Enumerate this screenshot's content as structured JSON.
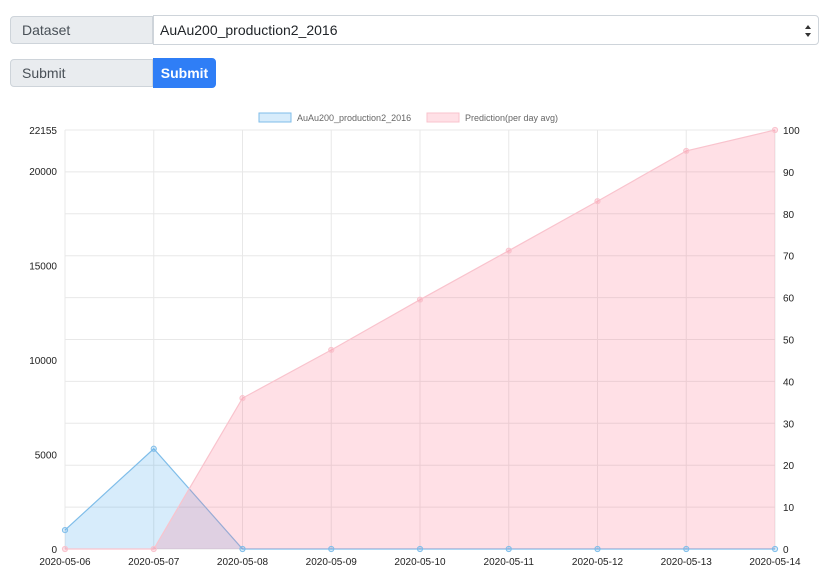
{
  "form": {
    "dataset_label": "Dataset",
    "dataset_value": "AuAu200_production2_2016",
    "submit_label": "Submit",
    "submit_button": "Submit"
  },
  "colors": {
    "primary": "#2f7ef6",
    "series1_line": "#7fbde9",
    "series1_fill": "rgba(54,162,235,0.2)",
    "series2_line": "#f9c3cd",
    "series2_fill": "rgba(255,99,132,0.2)"
  },
  "chart_data": {
    "type": "area",
    "x": [
      "2020-05-06",
      "2020-05-07",
      "2020-05-08",
      "2020-05-09",
      "2020-05-10",
      "2020-05-11",
      "2020-05-12",
      "2020-05-13",
      "2020-05-14"
    ],
    "series": [
      {
        "name": "AuAu200_production2_2016",
        "axis": "left",
        "values": [
          1000,
          5300,
          0,
          0,
          0,
          0,
          0,
          0,
          0
        ]
      },
      {
        "name": "Prediction(per day avg)",
        "axis": "right",
        "values": [
          0,
          0,
          36,
          47.5,
          59.5,
          71.2,
          83,
          95,
          100
        ]
      }
    ],
    "yleft": {
      "ticks": [
        "0",
        "5000",
        "10000",
        "15000",
        "20000",
        "22155"
      ],
      "tick_values": [
        0,
        5000,
        10000,
        15000,
        20000,
        22155
      ],
      "lim": [
        0,
        22155
      ]
    },
    "yright": {
      "ticks": [
        "0",
        "10",
        "20",
        "30",
        "40",
        "50",
        "60",
        "70",
        "80",
        "90",
        "100"
      ],
      "tick_values": [
        0,
        10,
        20,
        30,
        40,
        50,
        60,
        70,
        80,
        90,
        100
      ],
      "lim": [
        0,
        100
      ]
    },
    "grid": true,
    "legend": "top"
  }
}
